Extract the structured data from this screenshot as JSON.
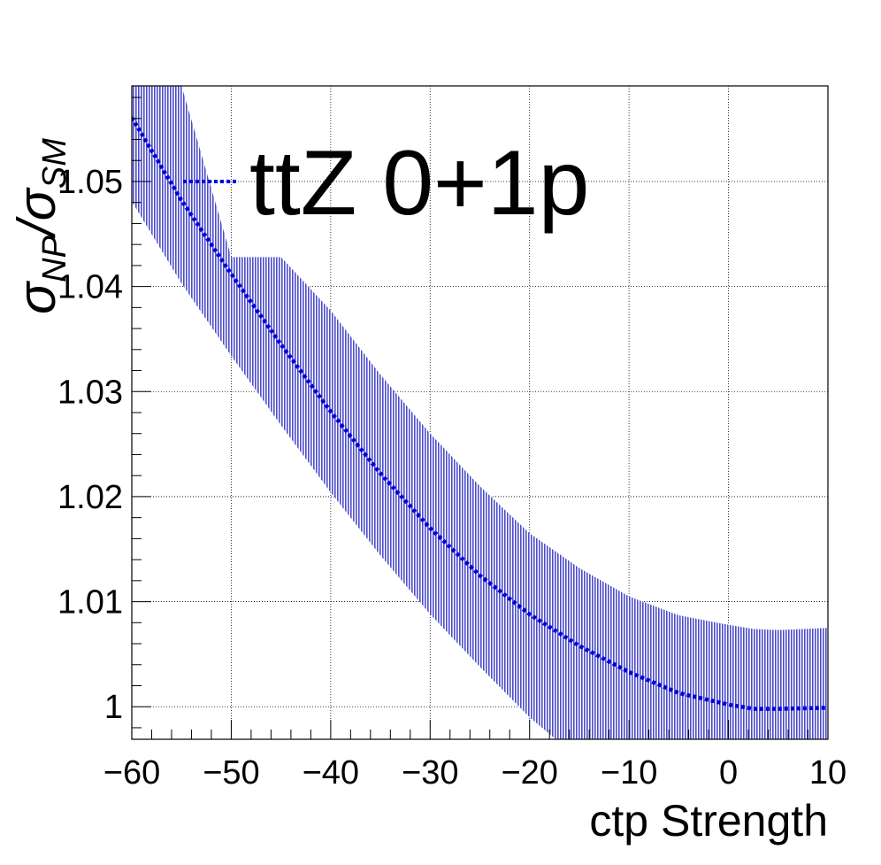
{
  "chart_data": {
    "type": "line",
    "xlabel": "ctp Strength",
    "ylabel_parts": {
      "sigma": "σ",
      "np": "NP",
      "slash": "/",
      "sm": "SM"
    },
    "xlim": [
      -60,
      10
    ],
    "ylim": [
      0.9969,
      1.0591
    ],
    "x_ticks": [
      {
        "value": -60,
        "label": "−60"
      },
      {
        "value": -50,
        "label": "−50"
      },
      {
        "value": -40,
        "label": "−40"
      },
      {
        "value": -30,
        "label": "−30"
      },
      {
        "value": -20,
        "label": "−20"
      },
      {
        "value": -10,
        "label": "−10"
      },
      {
        "value": 0,
        "label": "0"
      },
      {
        "value": 10,
        "label": "10"
      }
    ],
    "y_ticks": [
      {
        "value": 1.0,
        "label": "1"
      },
      {
        "value": 1.01,
        "label": "1.01"
      },
      {
        "value": 1.02,
        "label": "1.02"
      },
      {
        "value": 1.03,
        "label": "1.03"
      },
      {
        "value": 1.04,
        "label": "1.04"
      },
      {
        "value": 1.05,
        "label": "1.05"
      }
    ],
    "grid": true,
    "legend_position": "top",
    "series": [
      {
        "name": "ttZ 0+1p",
        "color": "#0000dd",
        "band_color": "#4d4dcc",
        "style": "dotted",
        "x": [
          -60,
          -55,
          -50,
          -45,
          -40,
          -35,
          -30,
          -25,
          -20,
          -15,
          -10,
          -5,
          0,
          2.5,
          5,
          10
        ],
        "y": [
          1.0561,
          1.0482,
          1.0412,
          1.0345,
          1.0281,
          1.0222,
          1.017,
          1.0125,
          1.0088,
          1.0058,
          1.0033,
          1.0013,
          1.0002,
          0.9998,
          0.9998,
          0.9999
        ],
        "band_low": [
          1.0481,
          1.0403,
          1.0334,
          1.0268,
          1.0204,
          1.0144,
          1.0088,
          1.0038,
          0.999,
          0.995,
          0.995,
          0.995,
          0.995,
          0.995,
          0.995,
          0.995
        ],
        "band_high": [
          1.0591,
          1.0591,
          1.0428,
          1.0428,
          1.0377,
          1.0316,
          1.026,
          1.021,
          1.0165,
          1.0132,
          1.0105,
          1.0087,
          1.0078,
          1.0074,
          1.0073,
          1.0075
        ]
      }
    ]
  }
}
